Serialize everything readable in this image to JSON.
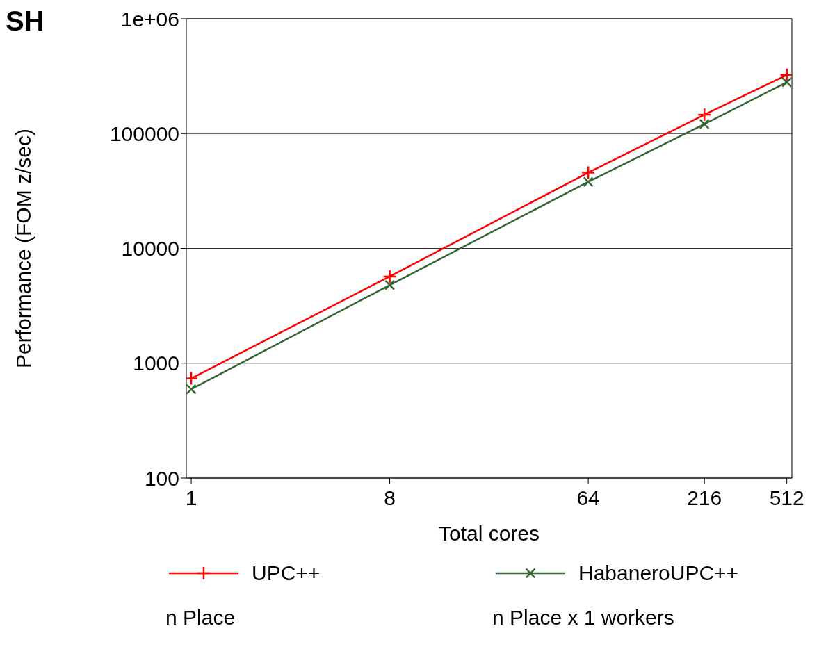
{
  "chart_data": {
    "type": "line",
    "title": "SH",
    "xlabel": "Total cores",
    "ylabel": "Performance (FOM z/sec)",
    "x": [
      1,
      8,
      64,
      216,
      512
    ],
    "series": [
      {
        "name": "UPC++",
        "color": "#ff0000",
        "values": [
          738,
          5690,
          45700,
          146000,
          324000
        ]
      },
      {
        "name": "HabaneroUPC++",
        "color": "#336633",
        "values": [
          594,
          4790,
          38000,
          121000,
          280000
        ]
      }
    ],
    "log": "xy",
    "xlim": [
      0.95,
      540
    ],
    "xticks": [
      1,
      8,
      64,
      216,
      512
    ],
    "ylim": [
      100,
      1000000
    ],
    "yticks": [
      100,
      1000,
      10000,
      100000,
      {
        "value": 1000000,
        "label": "1e+06"
      }
    ],
    "grid": "y",
    "legend": "bottom",
    "marker": "cross",
    "line_style": "solid",
    "annotations": [
      "n Place",
      "n Place x 1 workers"
    ]
  }
}
